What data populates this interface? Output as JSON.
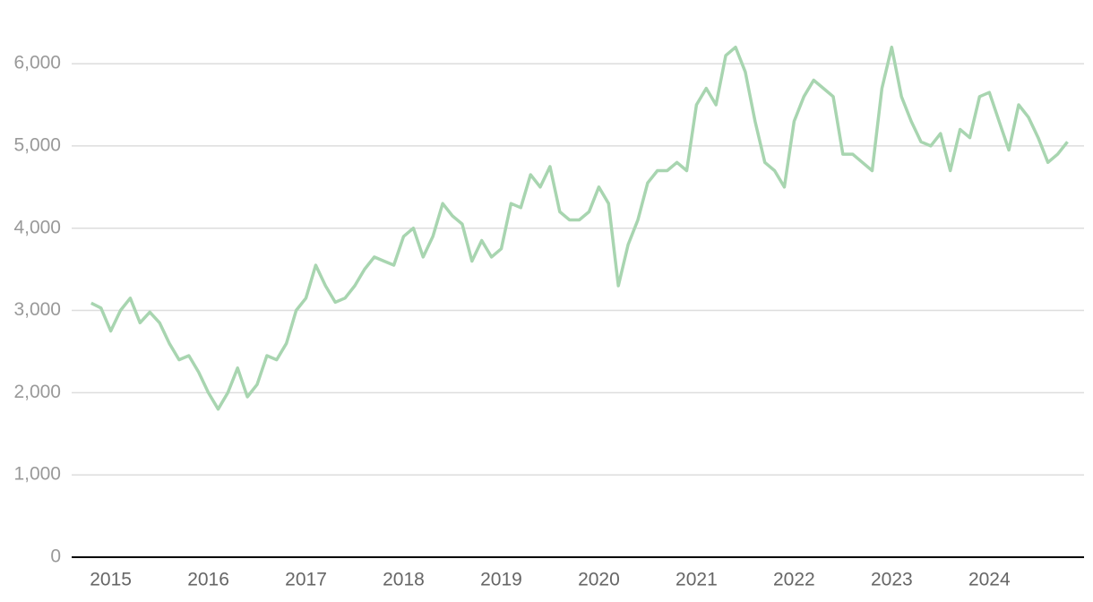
{
  "chart_data": {
    "type": "line",
    "x": [
      2014.8,
      2014.9,
      2015.0,
      2015.1,
      2015.2,
      2015.3,
      2015.4,
      2015.5,
      2015.6,
      2015.7,
      2015.8,
      2015.9,
      2016.0,
      2016.1,
      2016.2,
      2016.3,
      2016.4,
      2016.5,
      2016.6,
      2016.7,
      2016.8,
      2016.9,
      2017.0,
      2017.1,
      2017.2,
      2017.3,
      2017.4,
      2017.5,
      2017.6,
      2017.7,
      2017.8,
      2017.9,
      2018.0,
      2018.1,
      2018.2,
      2018.3,
      2018.4,
      2018.5,
      2018.6,
      2018.7,
      2018.8,
      2018.9,
      2019.0,
      2019.1,
      2019.2,
      2019.3,
      2019.4,
      2019.5,
      2019.6,
      2019.7,
      2019.8,
      2019.9,
      2020.0,
      2020.1,
      2020.2,
      2020.3,
      2020.4,
      2020.5,
      2020.6,
      2020.7,
      2020.8,
      2020.9,
      2021.0,
      2021.1,
      2021.2,
      2021.3,
      2021.4,
      2021.5,
      2021.6,
      2021.7,
      2021.8,
      2021.9,
      2022.0,
      2022.1,
      2022.2,
      2022.3,
      2022.4,
      2022.5,
      2022.6,
      2022.7,
      2022.8,
      2022.9,
      2023.0,
      2023.1,
      2023.2,
      2023.3,
      2023.4,
      2023.5,
      2023.6,
      2023.7,
      2023.8,
      2023.9,
      2024.0,
      2024.1,
      2024.2,
      2024.3,
      2024.4,
      2024.5,
      2024.6,
      2024.7,
      2024.8
    ],
    "series": [
      {
        "color": "#a8d5b0",
        "values": [
          3090,
          3030,
          2750,
          3000,
          3150,
          2850,
          2980,
          2850,
          2600,
          2400,
          2450,
          2250,
          2000,
          1800,
          2000,
          2300,
          1950,
          2100,
          2450,
          2400,
          2600,
          3000,
          3150,
          3550,
          3300,
          3100,
          3150,
          3300,
          3500,
          3650,
          3600,
          3550,
          3900,
          4000,
          3650,
          3900,
          4300,
          4150,
          4050,
          3600,
          3850,
          3650,
          3750,
          4300,
          4250,
          4650,
          4500,
          4750,
          4200,
          4100,
          4100,
          4200,
          4500,
          4300,
          3300,
          3800,
          4100,
          4550,
          4700,
          4700,
          4800,
          4700,
          5500,
          5700,
          5500,
          6100,
          6200,
          5900,
          5300,
          4800,
          4700,
          4500,
          5300,
          5600,
          5800,
          5700,
          5600,
          4900,
          4900,
          4800,
          4700,
          5700,
          6200,
          5600,
          5300,
          5050,
          5000,
          5150,
          4700,
          5200,
          5100,
          5600,
          5650,
          5300,
          4950,
          5500,
          5350,
          5100,
          4800,
          4900,
          5050
        ]
      }
    ],
    "xlim": [
      2014.6,
      2024.97
    ],
    "xticks": [
      2015,
      2016,
      2017,
      2018,
      2019,
      2020,
      2021,
      2022,
      2023,
      2024
    ],
    "ylim": [
      0,
      6600
    ],
    "yticks": [
      0,
      {
        "value": 1000,
        "label": "1,000"
      },
      {
        "value": 2000,
        "label": "2,000"
      },
      {
        "value": 3000,
        "label": "3,000"
      },
      {
        "value": 4000,
        "label": "4,000"
      },
      {
        "value": 5000,
        "label": "5,000"
      },
      {
        "value": 6000,
        "label": "6,000"
      }
    ],
    "grid": true
  }
}
